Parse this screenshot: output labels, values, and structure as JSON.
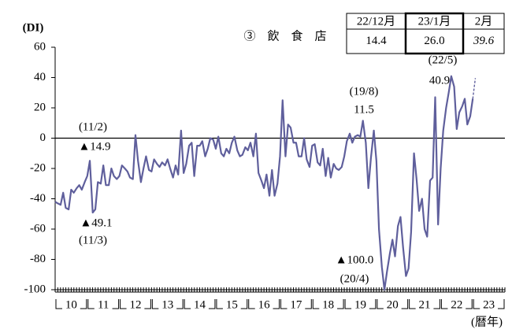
{
  "chart_data": {
    "type": "line",
    "title": "③　飲　食　店",
    "y_label": "(DI)",
    "x_unit": "(暦年)",
    "categories": [
      "10",
      "11",
      "12",
      "13",
      "14",
      "15",
      "16",
      "17",
      "18",
      "19",
      "20",
      "21",
      "22",
      "23"
    ],
    "xlim": [
      10,
      24
    ],
    "ylim": [
      -100,
      60
    ],
    "yticks": [
      -100,
      -80,
      -60,
      -40,
      -20,
      0,
      20,
      40,
      60
    ],
    "series": [
      {
        "color": "#5f5f9c",
        "dash": false,
        "x": [
          10,
          10.08,
          10.17,
          10.25,
          10.33,
          10.42,
          10.5,
          10.58,
          10.67,
          10.75,
          10.83,
          10.92,
          11,
          11.08,
          11.17,
          11.25,
          11.33,
          11.42,
          11.5,
          11.58,
          11.67,
          11.75,
          11.83,
          11.92,
          12,
          12.08,
          12.17,
          12.25,
          12.33,
          12.42,
          12.5,
          12.58,
          12.67,
          12.75,
          12.83,
          12.92,
          13,
          13.08,
          13.17,
          13.25,
          13.33,
          13.42,
          13.5,
          13.58,
          13.67,
          13.75,
          13.83,
          13.92,
          14,
          14.08,
          14.17,
          14.25,
          14.33,
          14.42,
          14.5,
          14.58,
          14.67,
          14.75,
          14.83,
          14.92,
          15,
          15.08,
          15.17,
          15.25,
          15.33,
          15.42,
          15.5,
          15.58,
          15.67,
          15.75,
          15.83,
          15.92,
          16,
          16.08,
          16.17,
          16.25,
          16.33,
          16.42,
          16.5,
          16.58,
          16.67,
          16.75,
          16.83,
          16.92,
          17,
          17.08,
          17.17,
          17.25,
          17.33,
          17.42,
          17.5,
          17.58,
          17.67,
          17.75,
          17.83,
          17.92,
          18,
          18.08,
          18.17,
          18.25,
          18.33,
          18.42,
          18.5,
          18.58,
          18.67,
          18.75,
          18.83,
          18.92,
          19,
          19.08,
          19.17,
          19.25,
          19.33,
          19.42,
          19.5,
          19.58,
          19.67,
          19.75,
          19.83,
          19.92,
          20,
          20.08,
          20.17,
          20.25,
          20.33,
          20.42,
          20.5,
          20.58,
          20.67,
          20.75,
          20.83,
          20.92,
          21,
          21.08,
          21.17,
          21.25,
          21.33,
          21.42,
          21.5,
          21.58,
          21.67,
          21.75,
          21.83,
          21.92,
          22,
          22.08,
          22.17,
          22.25,
          22.33,
          22.42,
          22.5,
          22.58,
          22.67,
          22.75,
          22.83,
          22.92,
          23
        ],
        "values": [
          -42,
          -43,
          -44,
          -36,
          -46,
          -47,
          -34,
          -36,
          -33,
          -31,
          -34,
          -29,
          -25,
          -14.9,
          -49.1,
          -47,
          -29,
          -30,
          -18,
          -31,
          -31,
          -20,
          -25,
          -27,
          -25,
          -18,
          -20,
          -22,
          -26,
          -27,
          2,
          -15,
          -29,
          -20,
          -12,
          -21,
          -22,
          -14,
          -17,
          -19,
          -16,
          -18,
          -14,
          -20,
          -26,
          -18,
          -24,
          5,
          -23,
          -17,
          -5,
          -3,
          -25,
          -5,
          -5,
          -2,
          -12,
          -7,
          0,
          -1,
          -7,
          1,
          -10,
          -12,
          -7,
          -10,
          -3,
          1,
          -8,
          -12,
          -11,
          -6,
          -8,
          -3,
          -12,
          3,
          -23,
          -28,
          -33,
          -24,
          -38,
          -21,
          -38,
          -30,
          -12,
          25,
          -12,
          9,
          7,
          -3,
          -3,
          -12,
          -12,
          0,
          -14,
          -19,
          -5,
          -4,
          -16,
          -18,
          -7,
          -25,
          -13,
          -26,
          -17,
          -20,
          -21,
          -19,
          -12,
          -2,
          3,
          -3,
          1,
          2,
          1,
          11.5,
          -3,
          -33,
          -13,
          5,
          -15,
          -60,
          -85,
          -100,
          -88,
          -76,
          -67,
          -78,
          -58,
          -52,
          -72,
          -91,
          -86,
          -62,
          -10,
          -27,
          -48,
          -40,
          -60,
          -65,
          -28,
          -26,
          27,
          -57,
          -20,
          5,
          20,
          30,
          40.9,
          34,
          6,
          17,
          21,
          26,
          9,
          14.4,
          26
        ]
      },
      {
        "color": "#5f5f9c",
        "dash": true,
        "x": [
          23,
          23.08
        ],
        "values": [
          26,
          39.6
        ]
      }
    ],
    "annotations": [
      "(11/2)",
      "▲14.9",
      "▲49.1",
      "(11/3)",
      "(19/8)",
      "11.5",
      "(22/5)",
      "40.9",
      "▲100.0",
      "(20/4)"
    ]
  },
  "table": {
    "header": [
      "22/12月",
      "23/1月",
      "2月"
    ],
    "values": [
      "14.4",
      "26.0",
      "39.6"
    ]
  }
}
